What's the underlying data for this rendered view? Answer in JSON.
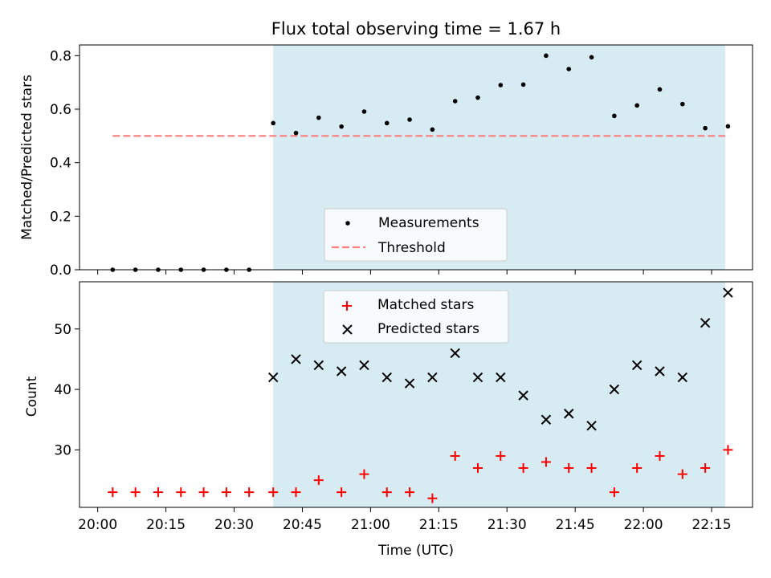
{
  "chart_data": [
    {
      "type": "scatter",
      "title": "Flux total observing time = 1.67 h",
      "xlabel": "",
      "ylabel": "Matched/Predicted stars",
      "x_ticks": [
        "20:00",
        "20:15",
        "20:30",
        "20:45",
        "21:00",
        "21:15",
        "21:30",
        "21:45",
        "22:00",
        "22:15"
      ],
      "x_tick_values": [
        0,
        15,
        30,
        45,
        60,
        75,
        90,
        105,
        120,
        135
      ],
      "xlim": [
        -4,
        144
      ],
      "ylim": [
        0,
        0.84
      ],
      "y_ticks": [
        "0.0",
        "0.2",
        "0.4",
        "0.6",
        "0.8"
      ],
      "y_tick_values": [
        0,
        0.2,
        0.4,
        0.6,
        0.8
      ],
      "x_units_note": "minutes after 20:00 UTC",
      "shaded_region": {
        "x": [
          38.6,
          138
        ],
        "color": "#add8e6"
      },
      "legend": {
        "placement": "lower-center",
        "entries": [
          "Measurements",
          "Threshold"
        ]
      },
      "series": [
        {
          "name": "Measurements",
          "marker": "dot",
          "color": "#000000",
          "x": [
            3.3,
            8.3,
            13.3,
            18.3,
            23.3,
            28.3,
            33.3,
            38.6,
            43.6,
            48.6,
            53.6,
            58.6,
            63.6,
            68.6,
            73.6,
            78.6,
            83.6,
            88.6,
            93.6,
            98.6,
            103.6,
            108.6,
            113.6,
            118.6,
            123.6,
            128.6,
            133.6,
            138.6
          ],
          "y": [
            0,
            0,
            0,
            0,
            0,
            0,
            0,
            0.548,
            0.511,
            0.568,
            0.535,
            0.591,
            0.548,
            0.561,
            0.524,
            0.63,
            0.643,
            0.69,
            0.692,
            0.8,
            0.75,
            0.794,
            0.575,
            0.614,
            0.674,
            0.619,
            0.529,
            0.536
          ]
        },
        {
          "name": "Threshold",
          "style": "dashed-line",
          "color": "#ff7f7f",
          "x": [
            3.3,
            138
          ],
          "y": [
            0.5,
            0.5
          ]
        }
      ]
    },
    {
      "type": "scatter",
      "title": "",
      "xlabel": "Time (UTC)",
      "ylabel": "Count",
      "x_ticks": [
        "20:00",
        "20:15",
        "20:30",
        "20:45",
        "21:00",
        "21:15",
        "21:30",
        "21:45",
        "22:00",
        "22:15"
      ],
      "x_tick_values": [
        0,
        15,
        30,
        45,
        60,
        75,
        90,
        105,
        120,
        135
      ],
      "xlim": [
        -4,
        144
      ],
      "ylim": [
        20.5,
        57.8
      ],
      "y_ticks": [
        "30",
        "40",
        "50"
      ],
      "y_tick_values": [
        30,
        40,
        50
      ],
      "x_units_note": "minutes after 20:00 UTC",
      "shaded_region": {
        "x": [
          38.6,
          138
        ],
        "color": "#add8e6"
      },
      "legend": {
        "placement": "top-center",
        "entries": [
          "Matched stars",
          "Predicted stars"
        ]
      },
      "series": [
        {
          "name": "Matched stars",
          "marker": "plus",
          "color": "#ff0000",
          "x": [
            3.3,
            8.3,
            13.3,
            18.3,
            23.3,
            28.3,
            33.3,
            38.6,
            43.6,
            48.6,
            53.6,
            58.6,
            63.6,
            68.6,
            73.6,
            78.6,
            83.6,
            88.6,
            93.6,
            98.6,
            103.6,
            108.6,
            113.6,
            118.6,
            123.6,
            128.6,
            133.6,
            138.6
          ],
          "y": [
            23,
            23,
            23,
            23,
            23,
            23,
            23,
            23,
            23,
            25,
            23,
            26,
            23,
            23,
            22,
            29,
            27,
            29,
            27,
            28,
            27,
            27,
            23,
            27,
            29,
            26,
            27,
            30
          ]
        },
        {
          "name": "Predicted stars",
          "marker": "x",
          "color": "#000000",
          "x": [
            38.6,
            43.6,
            48.6,
            53.6,
            58.6,
            63.6,
            68.6,
            73.6,
            78.6,
            83.6,
            88.6,
            93.6,
            98.6,
            103.6,
            108.6,
            113.6,
            118.6,
            123.6,
            128.6,
            133.6,
            138.6
          ],
          "y": [
            42,
            45,
            44,
            43,
            44,
            42,
            41,
            42,
            46,
            42,
            42,
            39,
            35,
            36,
            34,
            40,
            44,
            43,
            42,
            51,
            56
          ]
        }
      ]
    }
  ]
}
